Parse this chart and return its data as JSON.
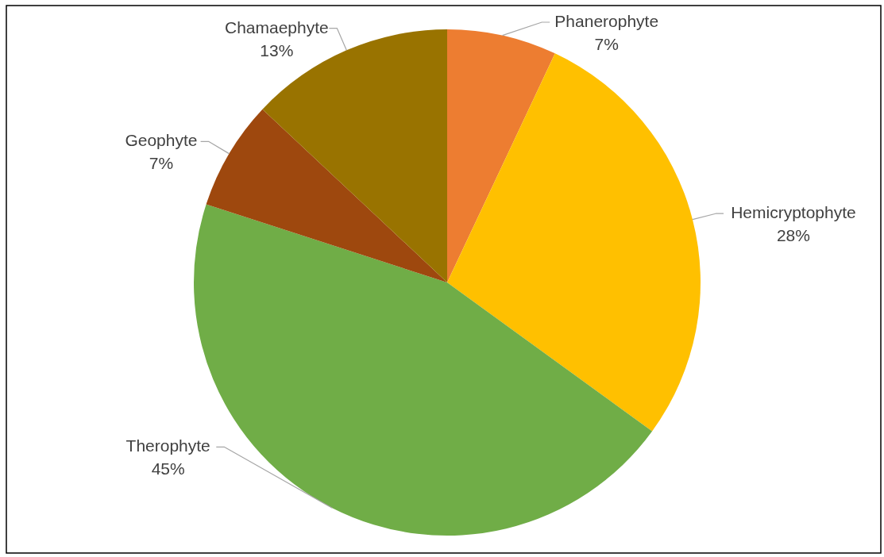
{
  "chart_data": {
    "type": "pie",
    "categories": [
      "Phanerophyte",
      "Hemicryptophyte",
      "Therophyte",
      "Geophyte",
      "Chamaephyte"
    ],
    "values": [
      7,
      28,
      45,
      7,
      13
    ],
    "colors": [
      "#ed7d31",
      "#ffc000",
      "#70ad47",
      "#9e480e",
      "#997300"
    ],
    "value_labels": [
      "7%",
      "28%",
      "45%",
      "7%",
      "13%"
    ]
  }
}
